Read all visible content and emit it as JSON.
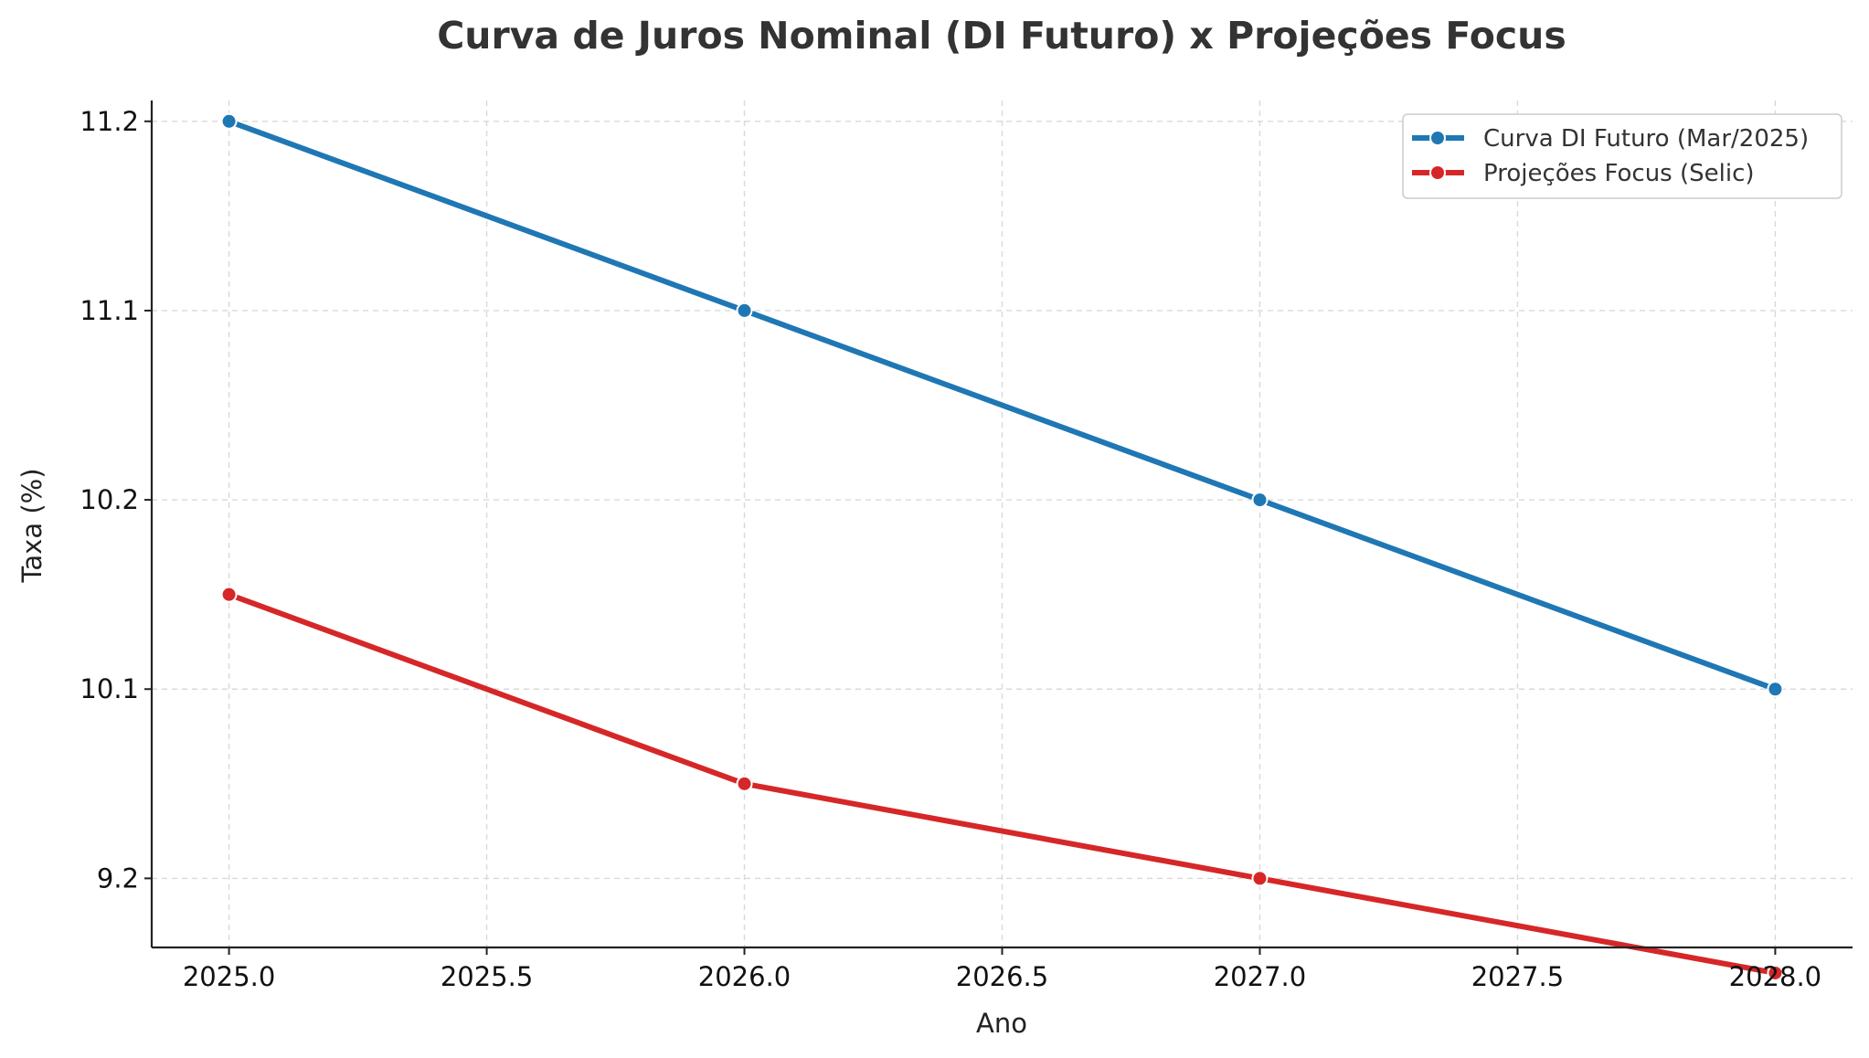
{
  "chart_data": {
    "type": "line",
    "title": "Curva de Juros Nominal (DI Futuro) x Projeções Focus",
    "xlabel": "Ano",
    "ylabel": "Taxa (%)",
    "x": [
      2025,
      2026,
      2027,
      2028
    ],
    "xlim": [
      2024.85,
      2028.15
    ],
    "x_ticks": [
      2025.0,
      2025.5,
      2026.0,
      2026.5,
      2027.0,
      2027.5,
      2028.0
    ],
    "x_tick_labels": [
      "2025.0",
      "2025.5",
      "2026.0",
      "2026.5",
      "2027.0",
      "2027.5",
      "2028.0"
    ],
    "y_ticks": [
      9.2,
      10.1,
      10.2,
      11.1,
      11.2
    ],
    "y_tick_labels": [
      "9.2",
      "10.1",
      "10.2",
      "11.1",
      "11.2"
    ],
    "y_tick_rank": [
      1,
      3,
      5,
      7,
      9
    ],
    "y_range_rank": [
      0.27,
      9.22
    ],
    "grid": true,
    "legend_position": "top-right",
    "series": [
      {
        "name": "Curva DI Futuro (Mar/2025)",
        "color": "#1f77b4",
        "x": [
          2025,
          2026,
          2027,
          2028
        ],
        "y_rank": [
          9,
          7,
          5,
          3
        ]
      },
      {
        "name": "Projeções Focus (Selic)",
        "color": "#d62728",
        "x": [
          2025,
          2026,
          2027,
          2028
        ],
        "y_rank": [
          4,
          2,
          1,
          0
        ]
      }
    ]
  }
}
